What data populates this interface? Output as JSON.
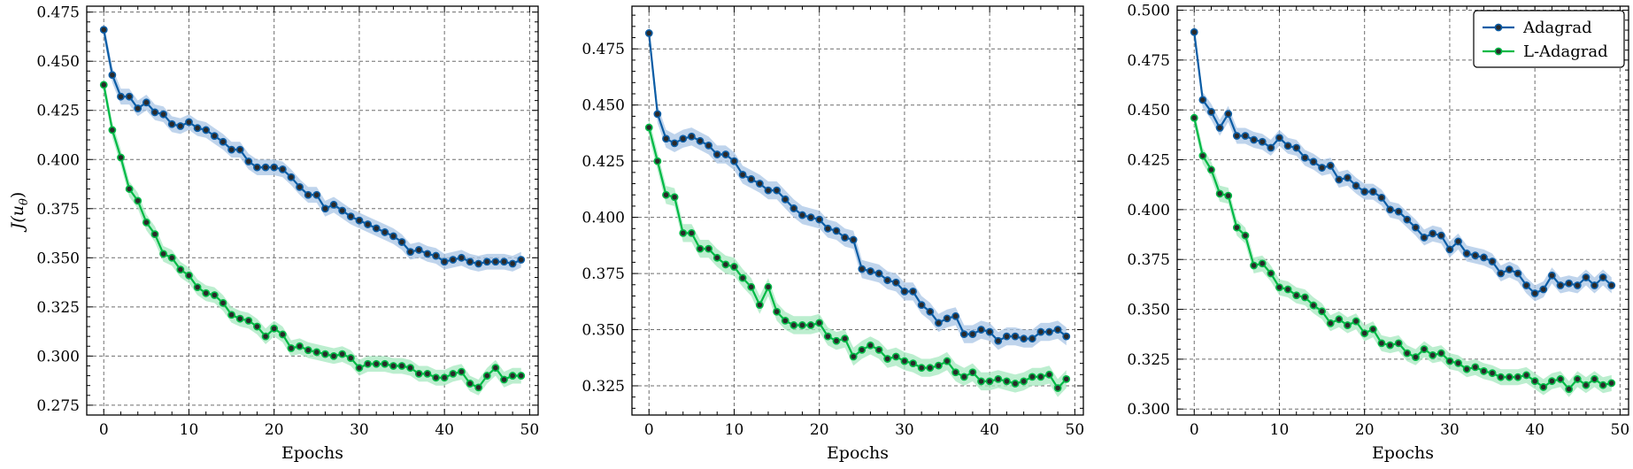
{
  "colors": {
    "adagrad": "#0c5da5",
    "ladagrad": "#00b945",
    "adagrad_band": "#a9c6e6",
    "ladagrad_band": "#a6e8bf",
    "marker_fill": "#2a2a2a",
    "grid": "#6e6e6e"
  },
  "chart_data": [
    {
      "type": "line",
      "xlabel": "Epochs",
      "ylabel": "J(u",
      "ylabel_sub": "θ",
      "ylabel_close": ")",
      "xlim": [
        -2,
        51
      ],
      "ylim": [
        0.27,
        0.478
      ],
      "xticks": [
        0,
        10,
        20,
        30,
        40,
        50
      ],
      "xtick_labels": [
        "0",
        "10",
        "20",
        "30",
        "40",
        "50"
      ],
      "yticks": [
        0.275,
        0.3,
        0.325,
        0.35,
        0.375,
        0.4,
        0.425,
        0.45,
        0.475
      ],
      "ytick_labels": [
        "0.275",
        "0.300",
        "0.325",
        "0.350",
        "0.375",
        "0.400",
        "0.425",
        "0.450",
        "0.475"
      ],
      "grid": true,
      "legend": null,
      "series": [
        {
          "key": "adagrad",
          "band": 0.004,
          "x": [
            0,
            1,
            2,
            3,
            4,
            5,
            6,
            7,
            8,
            9,
            10,
            11,
            12,
            13,
            14,
            15,
            16,
            17,
            18,
            19,
            20,
            21,
            22,
            23,
            24,
            25,
            26,
            27,
            28,
            29,
            30,
            31,
            32,
            33,
            34,
            35,
            36,
            37,
            38,
            39,
            40,
            41,
            42,
            43,
            44,
            45,
            46,
            47,
            48,
            49
          ],
          "values": [
            0.466,
            0.443,
            0.432,
            0.432,
            0.426,
            0.429,
            0.424,
            0.423,
            0.418,
            0.417,
            0.419,
            0.416,
            0.415,
            0.412,
            0.409,
            0.405,
            0.405,
            0.399,
            0.396,
            0.396,
            0.396,
            0.395,
            0.391,
            0.386,
            0.382,
            0.382,
            0.375,
            0.377,
            0.374,
            0.371,
            0.369,
            0.367,
            0.365,
            0.363,
            0.361,
            0.358,
            0.353,
            0.354,
            0.352,
            0.351,
            0.348,
            0.349,
            0.35,
            0.348,
            0.347,
            0.348,
            0.348,
            0.348,
            0.347,
            0.349
          ]
        },
        {
          "key": "ladagrad",
          "band": 0.004,
          "x": [
            0,
            1,
            2,
            3,
            4,
            5,
            6,
            7,
            8,
            9,
            10,
            11,
            12,
            13,
            14,
            15,
            16,
            17,
            18,
            19,
            20,
            21,
            22,
            23,
            24,
            25,
            26,
            27,
            28,
            29,
            30,
            31,
            32,
            33,
            34,
            35,
            36,
            37,
            38,
            39,
            40,
            41,
            42,
            43,
            44,
            45,
            46,
            47,
            48,
            49
          ],
          "values": [
            0.438,
            0.415,
            0.401,
            0.385,
            0.379,
            0.368,
            0.362,
            0.352,
            0.35,
            0.344,
            0.341,
            0.335,
            0.332,
            0.331,
            0.327,
            0.321,
            0.319,
            0.318,
            0.315,
            0.31,
            0.314,
            0.311,
            0.304,
            0.305,
            0.303,
            0.302,
            0.301,
            0.3,
            0.301,
            0.299,
            0.294,
            0.296,
            0.296,
            0.296,
            0.295,
            0.295,
            0.294,
            0.291,
            0.291,
            0.289,
            0.289,
            0.291,
            0.292,
            0.286,
            0.284,
            0.29,
            0.294,
            0.288,
            0.29,
            0.29
          ]
        }
      ]
    },
    {
      "type": "line",
      "xlabel": "Epochs",
      "ylabel": "",
      "xlim": [
        -2,
        51
      ],
      "ylim": [
        0.312,
        0.494
      ],
      "xticks": [
        0,
        10,
        20,
        30,
        40,
        50
      ],
      "xtick_labels": [
        "0",
        "10",
        "20",
        "30",
        "40",
        "50"
      ],
      "yticks": [
        0.325,
        0.35,
        0.375,
        0.4,
        0.425,
        0.45,
        0.475
      ],
      "ytick_labels": [
        "0.325",
        "0.350",
        "0.375",
        "0.400",
        "0.425",
        "0.450",
        "0.475"
      ],
      "grid": true,
      "legend": null,
      "series": [
        {
          "key": "adagrad",
          "band": 0.004,
          "x": [
            0,
            1,
            2,
            3,
            4,
            5,
            6,
            7,
            8,
            9,
            10,
            11,
            12,
            13,
            14,
            15,
            16,
            17,
            18,
            19,
            20,
            21,
            22,
            23,
            24,
            25,
            26,
            27,
            28,
            29,
            30,
            31,
            32,
            33,
            34,
            35,
            36,
            37,
            38,
            39,
            40,
            41,
            42,
            43,
            44,
            45,
            46,
            47,
            48,
            49
          ],
          "values": [
            0.482,
            0.446,
            0.435,
            0.433,
            0.435,
            0.436,
            0.434,
            0.432,
            0.428,
            0.428,
            0.425,
            0.419,
            0.417,
            0.415,
            0.412,
            0.412,
            0.408,
            0.404,
            0.401,
            0.4,
            0.399,
            0.395,
            0.394,
            0.391,
            0.39,
            0.377,
            0.376,
            0.375,
            0.372,
            0.371,
            0.367,
            0.367,
            0.361,
            0.358,
            0.353,
            0.355,
            0.356,
            0.348,
            0.348,
            0.35,
            0.349,
            0.345,
            0.347,
            0.347,
            0.346,
            0.346,
            0.349,
            0.349,
            0.35,
            0.347
          ]
        },
        {
          "key": "ladagrad",
          "band": 0.004,
          "x": [
            0,
            1,
            2,
            3,
            4,
            5,
            6,
            7,
            8,
            9,
            10,
            11,
            12,
            13,
            14,
            15,
            16,
            17,
            18,
            19,
            20,
            21,
            22,
            23,
            24,
            25,
            26,
            27,
            28,
            29,
            30,
            31,
            32,
            33,
            34,
            35,
            36,
            37,
            38,
            39,
            40,
            41,
            42,
            43,
            44,
            45,
            46,
            47,
            48,
            49
          ],
          "values": [
            0.44,
            0.425,
            0.41,
            0.409,
            0.393,
            0.393,
            0.386,
            0.386,
            0.382,
            0.379,
            0.378,
            0.373,
            0.369,
            0.361,
            0.369,
            0.358,
            0.354,
            0.352,
            0.352,
            0.352,
            0.353,
            0.347,
            0.345,
            0.346,
            0.338,
            0.341,
            0.343,
            0.341,
            0.337,
            0.338,
            0.336,
            0.335,
            0.333,
            0.333,
            0.334,
            0.336,
            0.331,
            0.329,
            0.331,
            0.327,
            0.327,
            0.328,
            0.327,
            0.326,
            0.327,
            0.329,
            0.329,
            0.33,
            0.324,
            0.328
          ]
        }
      ]
    },
    {
      "type": "line",
      "xlabel": "Epochs",
      "ylabel": "",
      "xlim": [
        -2,
        51
      ],
      "ylim": [
        0.297,
        0.502
      ],
      "xticks": [
        0,
        10,
        20,
        30,
        40,
        50
      ],
      "xtick_labels": [
        "0",
        "10",
        "20",
        "30",
        "40",
        "50"
      ],
      "yticks": [
        0.3,
        0.325,
        0.35,
        0.375,
        0.4,
        0.425,
        0.45,
        0.475,
        0.5
      ],
      "ytick_labels": [
        "0.300",
        "0.325",
        "0.350",
        "0.375",
        "0.400",
        "0.425",
        "0.450",
        "0.475",
        "0.500"
      ],
      "grid": true,
      "legend": {
        "position": "top-right",
        "entries": [
          {
            "key": "adagrad",
            "label": "Adagrad"
          },
          {
            "key": "ladagrad",
            "label": "L-Adagrad"
          }
        ]
      },
      "series": [
        {
          "key": "adagrad",
          "band": 0.004,
          "x": [
            0,
            1,
            2,
            3,
            4,
            5,
            6,
            7,
            8,
            9,
            10,
            11,
            12,
            13,
            14,
            15,
            16,
            17,
            18,
            19,
            20,
            21,
            22,
            23,
            24,
            25,
            26,
            27,
            28,
            29,
            30,
            31,
            32,
            33,
            34,
            35,
            36,
            37,
            38,
            39,
            40,
            41,
            42,
            43,
            44,
            45,
            46,
            47,
            48,
            49
          ],
          "values": [
            0.489,
            0.455,
            0.449,
            0.441,
            0.448,
            0.437,
            0.437,
            0.435,
            0.434,
            0.431,
            0.436,
            0.432,
            0.431,
            0.426,
            0.424,
            0.421,
            0.422,
            0.415,
            0.416,
            0.412,
            0.409,
            0.409,
            0.406,
            0.4,
            0.399,
            0.395,
            0.391,
            0.386,
            0.388,
            0.387,
            0.38,
            0.384,
            0.378,
            0.377,
            0.376,
            0.374,
            0.368,
            0.37,
            0.368,
            0.362,
            0.358,
            0.36,
            0.367,
            0.362,
            0.363,
            0.362,
            0.366,
            0.362,
            0.366,
            0.362
          ]
        },
        {
          "key": "ladagrad",
          "band": 0.004,
          "x": [
            0,
            1,
            2,
            3,
            4,
            5,
            6,
            7,
            8,
            9,
            10,
            11,
            12,
            13,
            14,
            15,
            16,
            17,
            18,
            19,
            20,
            21,
            22,
            23,
            24,
            25,
            26,
            27,
            28,
            29,
            30,
            31,
            32,
            33,
            34,
            35,
            36,
            37,
            38,
            39,
            40,
            41,
            42,
            43,
            44,
            45,
            46,
            47,
            48,
            49
          ],
          "values": [
            0.446,
            0.427,
            0.42,
            0.408,
            0.407,
            0.391,
            0.387,
            0.372,
            0.373,
            0.368,
            0.361,
            0.36,
            0.357,
            0.356,
            0.352,
            0.349,
            0.343,
            0.345,
            0.342,
            0.344,
            0.338,
            0.34,
            0.333,
            0.332,
            0.333,
            0.328,
            0.326,
            0.33,
            0.327,
            0.328,
            0.324,
            0.323,
            0.32,
            0.321,
            0.319,
            0.318,
            0.316,
            0.316,
            0.316,
            0.317,
            0.314,
            0.311,
            0.314,
            0.315,
            0.31,
            0.315,
            0.312,
            0.315,
            0.312,
            0.313
          ]
        }
      ]
    }
  ]
}
